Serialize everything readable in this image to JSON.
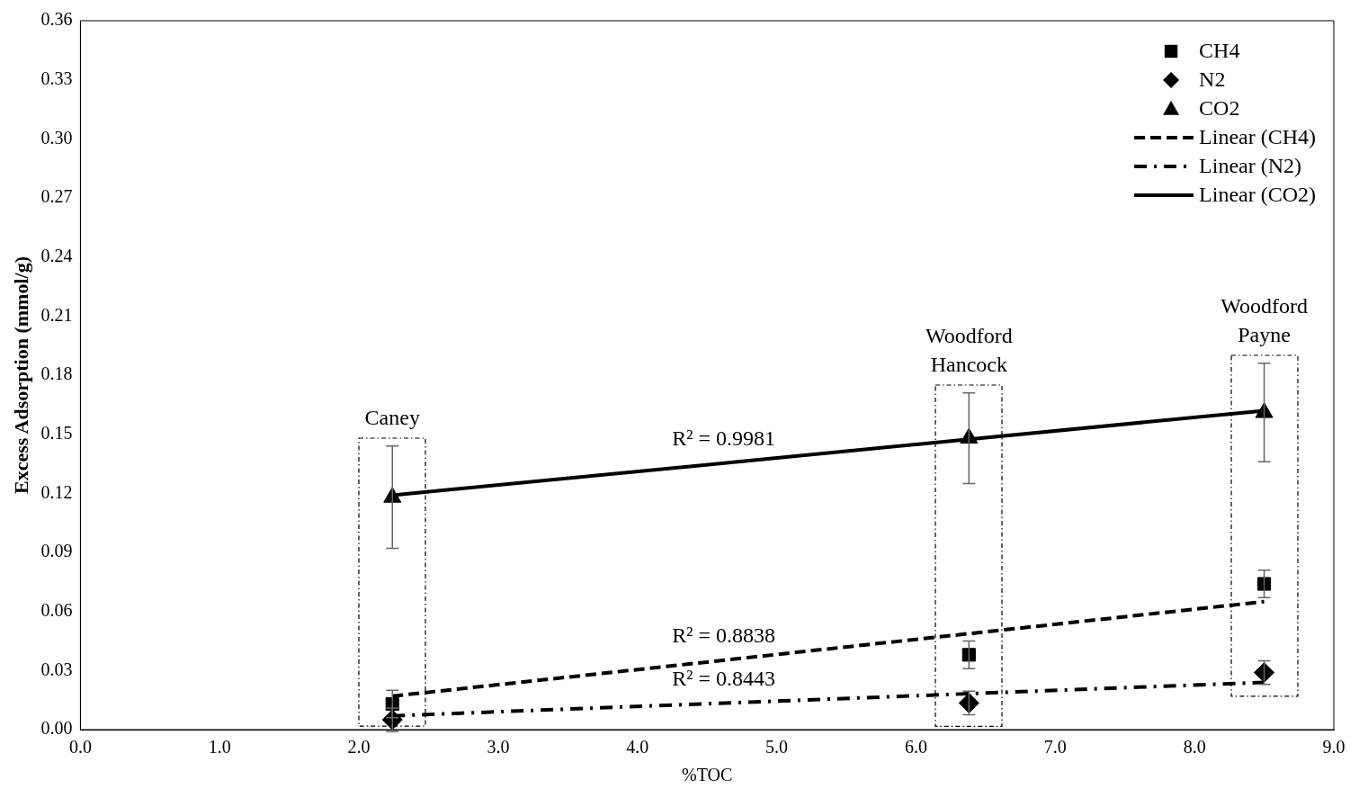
{
  "chart_data": {
    "type": "scatter",
    "xlabel": "%TOC",
    "ylabel": "Excess Adsorption (mmol/g)",
    "xlim": [
      0,
      9
    ],
    "xticks": [
      {
        "value": 0,
        "label": "0.0"
      },
      {
        "value": 1,
        "label": "1.0"
      },
      {
        "value": 2,
        "label": "2.0"
      },
      {
        "value": 3,
        "label": "3.0"
      },
      {
        "value": 4,
        "label": "4.0"
      },
      {
        "value": 5,
        "label": "5.0"
      },
      {
        "value": 6,
        "label": "6.0"
      },
      {
        "value": 7,
        "label": "7.0"
      },
      {
        "value": 8,
        "label": "8.0"
      },
      {
        "value": 9,
        "label": "9.0"
      }
    ],
    "ylim": [
      0,
      0.36
    ],
    "yticks": [
      {
        "value": 0,
        "label": "0.00"
      },
      {
        "value": 0.03,
        "label": "0.03"
      },
      {
        "value": 0.06,
        "label": "0.06"
      },
      {
        "value": 0.09,
        "label": "0.09"
      },
      {
        "value": 0.12,
        "label": "0.12"
      },
      {
        "value": 0.15,
        "label": "0.15"
      },
      {
        "value": 0.18,
        "label": "0.18"
      },
      {
        "value": 0.21,
        "label": "0.21"
      },
      {
        "value": 0.24,
        "label": "0.24"
      },
      {
        "value": 0.27,
        "label": "0.27"
      },
      {
        "value": 0.3,
        "label": "0.30"
      },
      {
        "value": 0.33,
        "label": "0.33"
      },
      {
        "value": 0.36,
        "label": "0.36"
      }
    ],
    "grid": false,
    "legend": "top right",
    "series": [
      {
        "name": "CH4",
        "marker": "square",
        "color": "#000000",
        "x": [
          2.24,
          6.38,
          8.5
        ],
        "values": [
          0.013,
          0.038,
          0.074
        ],
        "errors": [
          0.007,
          0.007,
          0.007
        ]
      },
      {
        "name": "N2",
        "marker": "diamond",
        "color": "#000000",
        "x": [
          2.24,
          6.38,
          8.5
        ],
        "values": [
          0.005,
          0.0135,
          0.029
        ],
        "errors": [
          0.006,
          0.006,
          0.006
        ]
      },
      {
        "name": "CO2",
        "marker": "triangle",
        "color": "#000000",
        "x": [
          2.24,
          6.38,
          8.5
        ],
        "values": [
          0.118,
          0.148,
          0.161
        ],
        "errors": [
          0.026,
          0.023,
          0.025
        ]
      },
      {
        "name": "Linear (CH4)",
        "type": "line",
        "line_style": "dashed",
        "color": "#000000",
        "x": [
          2.24,
          8.5
        ],
        "values": [
          0.017,
          0.065
        ]
      },
      {
        "name": "Linear (N2)",
        "type": "line",
        "line_style": "dashdot",
        "color": "#000000",
        "x": [
          2.24,
          8.5
        ],
        "values": [
          0.007,
          0.024
        ]
      },
      {
        "name": "Linear (CO2)",
        "type": "line",
        "line_style": "solid",
        "color": "#000000",
        "x": [
          2.24,
          8.5
        ],
        "values": [
          0.119,
          0.162
        ]
      }
    ],
    "annotations": [
      "Caney",
      "Woodford\nHancock",
      "Woodford\nPayne",
      "R² = 0.8838",
      "R² = 0.8443",
      "R² = 0.9981"
    ]
  }
}
